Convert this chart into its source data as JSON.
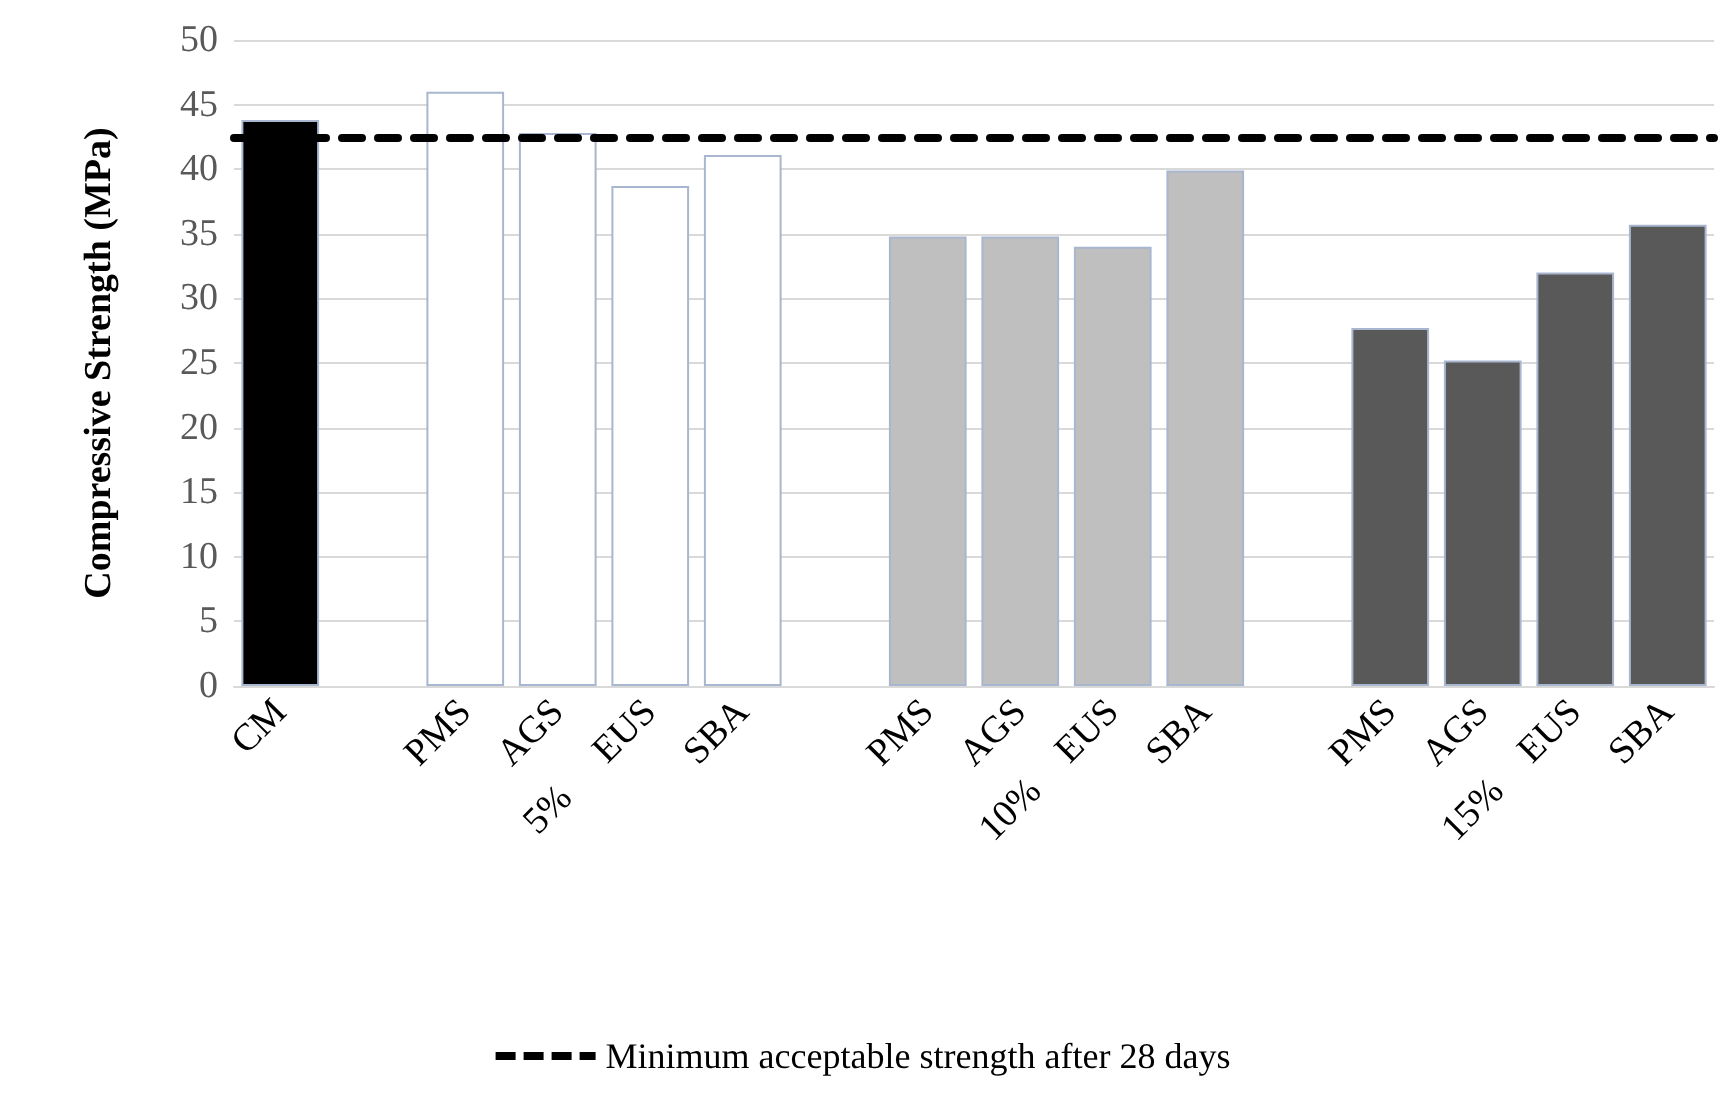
{
  "chart_data": {
    "type": "bar",
    "ylabel": "Compressive Strength (MPa)",
    "categories": [
      "CM",
      null,
      "PMS",
      "AGS",
      "EUS",
      "SBA",
      null,
      "PMS",
      "AGS",
      "EUS",
      "SBA",
      null,
      "PMS",
      "AGS",
      "EUS",
      "SBA"
    ],
    "values": [
      43.8,
      null,
      46.0,
      42.8,
      38.7,
      41.1,
      null,
      34.8,
      34.8,
      34.0,
      39.9,
      null,
      27.7,
      25.2,
      32.0,
      35.7
    ],
    "colors": [
      "#000000",
      null,
      "#ffffff",
      "#ffffff",
      "#ffffff",
      "#ffffff",
      null,
      "#bfbfbf",
      "#bfbfbf",
      "#bfbfbf",
      "#bfbfbf",
      null,
      "#595959",
      "#595959",
      "#595959",
      "#595959"
    ],
    "ylim": [
      0,
      50
    ],
    "yticks": [
      0,
      5,
      10,
      15,
      20,
      25,
      30,
      35,
      40,
      45,
      50
    ],
    "grid": "y",
    "legend": "bottom",
    "ref_lines": [
      {
        "axis": "y",
        "value": 42.5,
        "label": "Minimum acceptable strength after 28 days",
        "color": "#000000",
        "line_style": "dashed"
      }
    ],
    "annotations": [
      "5%",
      "10%",
      "15%"
    ]
  }
}
